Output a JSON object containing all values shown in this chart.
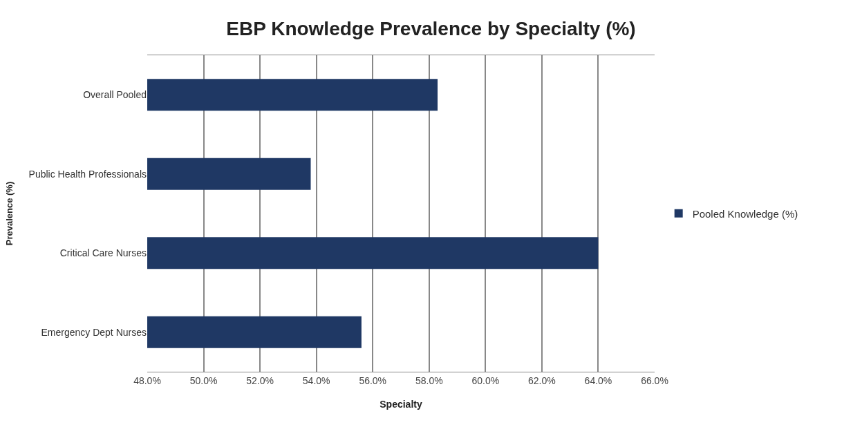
{
  "chart_data": {
    "type": "bar",
    "orientation": "horizontal",
    "title": "EBP Knowledge Prevalence by Specialty (%)",
    "xlabel": "Specialty",
    "ylabel": "Prevalence (%)",
    "categories": [
      "Overall Pooled",
      "Public Health Professionals",
      "Critical Care Nurses",
      "Emergency Dept Nurses"
    ],
    "series": [
      {
        "name": "Pooled Knowledge (%)",
        "color": "#1f3864",
        "values": [
          58.3,
          53.8,
          64.0,
          55.6
        ]
      }
    ],
    "xlim": [
      48,
      66
    ],
    "xticks": [
      {
        "value": 48,
        "label": "48.0%"
      },
      {
        "value": 50,
        "label": "50.0%"
      },
      {
        "value": 52,
        "label": "52.0%"
      },
      {
        "value": 54,
        "label": "54.0%"
      },
      {
        "value": 56,
        "label": "56.0%"
      },
      {
        "value": 58,
        "label": "58.0%"
      },
      {
        "value": 60,
        "label": "60.0%"
      },
      {
        "value": 62,
        "label": "62.0%"
      },
      {
        "value": 64,
        "label": "64.0%"
      },
      {
        "value": 66,
        "label": "66.0%"
      }
    ],
    "grid": "x",
    "legend": "right"
  }
}
